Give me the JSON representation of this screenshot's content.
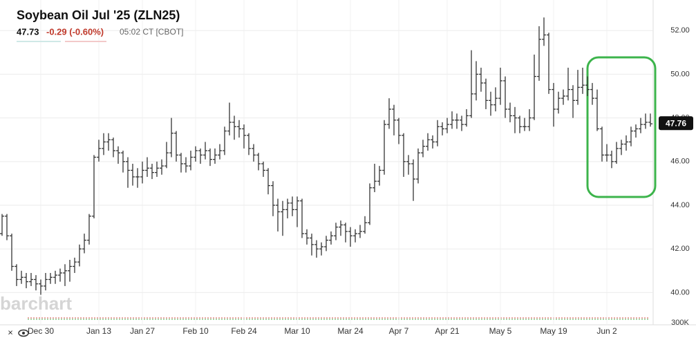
{
  "chart_data": {
    "type": "ohlc",
    "title": "Soybean Oil Jul '25 (ZLN25)",
    "last": 47.73,
    "change": "-0.29 (-0.60%)",
    "time_exchange": "05:02 CT [CBOT]",
    "watermark": "barchart",
    "volume_axis_label": "300K",
    "price_tag": 47.76,
    "color": "#333333",
    "ylim": [
      39.0,
      53.4
    ],
    "yticks": [
      {
        "value": 40,
        "label": "40.00"
      },
      {
        "value": 42,
        "label": "42.00"
      },
      {
        "value": 44,
        "label": "44.00"
      },
      {
        "value": 46,
        "label": "46.00"
      },
      {
        "value": 48,
        "label": "48.00"
      },
      {
        "value": 50,
        "label": "50.00"
      },
      {
        "value": 52,
        "label": "52.00"
      }
    ],
    "grid": true,
    "categories": [
      null,
      null,
      null,
      null,
      null,
      null,
      null,
      null,
      "Dec 30",
      null,
      null,
      null,
      null,
      null,
      null,
      null,
      null,
      null,
      null,
      null,
      "Jan 13",
      null,
      null,
      null,
      null,
      null,
      null,
      null,
      null,
      "Jan 27",
      null,
      null,
      null,
      null,
      null,
      null,
      null,
      null,
      null,
      null,
      "Feb 10",
      null,
      null,
      null,
      null,
      null,
      null,
      null,
      null,
      null,
      "Feb 24",
      null,
      null,
      null,
      null,
      null,
      null,
      null,
      null,
      null,
      null,
      "Mar 10",
      null,
      null,
      null,
      null,
      null,
      null,
      null,
      null,
      null,
      null,
      "Mar 24",
      null,
      null,
      null,
      null,
      null,
      null,
      null,
      null,
      null,
      "Apr 7",
      null,
      null,
      null,
      null,
      null,
      null,
      null,
      null,
      null,
      "Apr 21",
      null,
      null,
      null,
      null,
      null,
      null,
      null,
      null,
      null,
      null,
      "May 5",
      null,
      null,
      null,
      null,
      null,
      null,
      null,
      null,
      null,
      null,
      "May 19",
      null,
      null,
      null,
      null,
      null,
      null,
      null,
      null,
      null,
      null,
      "Jun 2",
      null,
      null,
      null,
      null,
      null,
      null,
      null,
      null,
      null
    ],
    "values": [
      [
        42.7,
        43.6,
        42.6,
        43.5
      ],
      [
        43.5,
        43.6,
        42.4,
        42.6
      ],
      [
        42.6,
        42.7,
        41.0,
        41.2
      ],
      [
        41.2,
        41.3,
        40.3,
        40.6
      ],
      [
        40.6,
        41.0,
        40.4,
        40.7
      ],
      [
        40.7,
        40.9,
        40.2,
        40.5
      ],
      [
        40.5,
        40.9,
        40.3,
        40.6
      ],
      [
        40.6,
        40.8,
        40.1,
        40.4
      ],
      [
        40.4,
        40.6,
        39.9,
        40.3
      ],
      [
        40.3,
        40.9,
        40.1,
        40.6
      ],
      [
        40.6,
        40.9,
        40.4,
        40.7
      ],
      [
        40.7,
        41.0,
        40.4,
        40.8
      ],
      [
        40.8,
        41.1,
        40.5,
        40.9
      ],
      [
        40.9,
        41.3,
        40.3,
        41.0
      ],
      [
        41.0,
        41.5,
        40.5,
        41.2
      ],
      [
        41.2,
        41.6,
        40.9,
        41.4
      ],
      [
        41.4,
        42.2,
        41.2,
        42.0
      ],
      [
        42.0,
        42.7,
        41.8,
        42.4
      ],
      [
        42.4,
        43.6,
        42.2,
        43.5
      ],
      [
        43.5,
        46.3,
        43.4,
        46.2
      ],
      [
        46.2,
        47.0,
        46.0,
        46.6
      ],
      [
        46.6,
        47.3,
        46.3,
        46.9
      ],
      [
        46.9,
        47.3,
        46.5,
        47.0
      ],
      [
        47.0,
        47.1,
        46.2,
        46.5
      ],
      [
        46.5,
        46.7,
        45.9,
        46.4
      ],
      [
        46.4,
        46.5,
        45.5,
        46.0
      ],
      [
        46.0,
        46.2,
        44.8,
        45.6
      ],
      [
        45.6,
        45.9,
        44.9,
        45.3
      ],
      [
        45.3,
        45.7,
        44.8,
        45.3
      ],
      [
        45.3,
        46.0,
        45.0,
        45.6
      ],
      [
        45.6,
        46.2,
        45.3,
        45.7
      ],
      [
        45.7,
        45.9,
        45.2,
        45.5
      ],
      [
        45.5,
        46.0,
        45.3,
        45.7
      ],
      [
        45.7,
        46.1,
        45.4,
        45.8
      ],
      [
        45.8,
        46.9,
        45.7,
        46.4
      ],
      [
        46.4,
        48.0,
        46.2,
        47.3
      ],
      [
        47.3,
        47.4,
        46.0,
        46.3
      ],
      [
        46.3,
        46.4,
        45.5,
        45.9
      ],
      [
        45.9,
        46.2,
        45.5,
        45.8
      ],
      [
        45.8,
        46.5,
        45.6,
        46.2
      ],
      [
        46.2,
        46.7,
        46.0,
        46.5
      ],
      [
        46.5,
        46.6,
        45.9,
        46.3
      ],
      [
        46.3,
        46.9,
        46.1,
        46.5
      ],
      [
        46.5,
        46.6,
        45.8,
        46.1
      ],
      [
        46.1,
        46.6,
        45.9,
        46.3
      ],
      [
        46.3,
        46.8,
        46.1,
        46.5
      ],
      [
        46.5,
        47.6,
        46.3,
        47.4
      ],
      [
        47.4,
        48.7,
        47.2,
        47.8
      ],
      [
        47.8,
        48.1,
        47.0,
        47.6
      ],
      [
        47.6,
        47.9,
        47.1,
        47.5
      ],
      [
        47.5,
        47.7,
        46.6,
        47.2
      ],
      [
        47.2,
        47.3,
        46.3,
        46.6
      ],
      [
        46.6,
        46.8,
        46.0,
        46.3
      ],
      [
        46.3,
        46.4,
        45.6,
        45.9
      ],
      [
        45.9,
        46.0,
        45.3,
        45.6
      ],
      [
        45.6,
        45.7,
        44.5,
        44.9
      ],
      [
        44.9,
        45.1,
        43.5,
        44.0
      ],
      [
        44.0,
        44.3,
        42.8,
        43.7
      ],
      [
        43.7,
        44.2,
        42.6,
        43.8
      ],
      [
        43.8,
        44.3,
        43.4,
        44.1
      ],
      [
        44.1,
        44.4,
        43.5,
        43.8
      ],
      [
        43.8,
        44.4,
        43.0,
        44.2
      ],
      [
        44.2,
        44.3,
        42.5,
        42.7
      ],
      [
        42.7,
        42.9,
        42.2,
        42.5
      ],
      [
        42.5,
        42.7,
        41.7,
        42.2
      ],
      [
        42.2,
        42.4,
        41.6,
        42.0
      ],
      [
        42.0,
        42.3,
        41.7,
        42.1
      ],
      [
        42.1,
        42.6,
        41.9,
        42.4
      ],
      [
        42.4,
        42.8,
        42.2,
        42.6
      ],
      [
        42.6,
        43.2,
        42.4,
        43.0
      ],
      [
        43.0,
        43.3,
        42.6,
        43.1
      ],
      [
        43.1,
        43.2,
        42.3,
        42.8
      ],
      [
        42.8,
        43.0,
        42.1,
        42.6
      ],
      [
        42.6,
        42.9,
        42.3,
        42.7
      ],
      [
        42.7,
        43.1,
        42.5,
        42.8
      ],
      [
        42.8,
        43.5,
        42.7,
        43.2
      ],
      [
        43.2,
        45.0,
        43.1,
        44.8
      ],
      [
        44.8,
        45.9,
        44.6,
        45.1
      ],
      [
        45.1,
        45.8,
        44.9,
        45.6
      ],
      [
        45.6,
        47.9,
        45.4,
        47.7
      ],
      [
        47.7,
        48.9,
        47.5,
        48.4
      ],
      [
        48.4,
        48.6,
        47.2,
        47.9
      ],
      [
        47.9,
        48.0,
        46.8,
        47.2
      ],
      [
        47.2,
        47.3,
        45.3,
        46.0
      ],
      [
        46.0,
        46.3,
        45.4,
        45.9
      ],
      [
        45.9,
        46.1,
        44.2,
        45.2
      ],
      [
        45.2,
        46.6,
        45.0,
        46.4
      ],
      [
        46.4,
        47.0,
        46.2,
        46.7
      ],
      [
        46.7,
        47.3,
        46.5,
        47.0
      ],
      [
        47.0,
        47.2,
        46.6,
        46.9
      ],
      [
        46.9,
        47.9,
        46.7,
        47.6
      ],
      [
        47.6,
        47.8,
        47.2,
        47.5
      ],
      [
        47.5,
        48.0,
        47.3,
        47.7
      ],
      [
        47.7,
        48.3,
        47.5,
        47.9
      ],
      [
        47.9,
        48.2,
        47.5,
        47.9
      ],
      [
        47.9,
        48.1,
        47.4,
        47.7
      ],
      [
        47.7,
        48.4,
        47.6,
        48.1
      ],
      [
        48.1,
        51.1,
        48.0,
        49.1
      ],
      [
        49.1,
        50.6,
        48.8,
        50.0
      ],
      [
        50.0,
        50.3,
        49.2,
        49.6
      ],
      [
        49.6,
        49.8,
        48.4,
        48.8
      ],
      [
        48.8,
        49.2,
        48.1,
        48.6
      ],
      [
        48.6,
        49.4,
        48.3,
        48.9
      ],
      [
        48.9,
        50.3,
        48.6,
        49.7
      ],
      [
        49.7,
        49.9,
        48.0,
        48.4
      ],
      [
        48.4,
        48.7,
        47.8,
        48.1
      ],
      [
        48.1,
        48.5,
        47.3,
        48.0
      ],
      [
        48.0,
        48.1,
        47.3,
        47.6
      ],
      [
        47.6,
        48.0,
        47.4,
        47.6
      ],
      [
        47.6,
        48.4,
        47.4,
        48.0
      ],
      [
        48.0,
        50.9,
        47.9,
        49.9
      ],
      [
        49.9,
        52.2,
        49.7,
        51.6
      ],
      [
        51.6,
        52.6,
        51.3,
        51.8
      ],
      [
        51.8,
        51.9,
        49.1,
        49.3
      ],
      [
        49.3,
        49.6,
        47.6,
        48.4
      ],
      [
        48.4,
        49.2,
        48.2,
        48.9
      ],
      [
        48.9,
        49.3,
        48.6,
        49.0
      ],
      [
        49.0,
        50.3,
        48.8,
        49.3
      ],
      [
        49.3,
        49.5,
        48.0,
        48.8
      ],
      [
        48.8,
        50.2,
        48.6,
        49.4
      ],
      [
        49.4,
        50.3,
        49.1,
        49.5
      ],
      [
        49.5,
        49.9,
        49.0,
        49.3
      ],
      [
        49.3,
        49.6,
        48.6,
        48.9
      ],
      [
        48.9,
        49.3,
        47.4,
        47.5
      ],
      [
        47.5,
        47.6,
        46.0,
        46.3
      ],
      [
        46.3,
        46.8,
        46.0,
        46.3
      ],
      [
        46.3,
        46.5,
        45.7,
        46.0
      ],
      [
        46.0,
        46.9,
        45.9,
        46.6
      ],
      [
        46.6,
        47.0,
        46.3,
        46.8
      ],
      [
        46.8,
        47.2,
        46.5,
        46.9
      ],
      [
        46.9,
        47.6,
        46.7,
        47.4
      ],
      [
        47.4,
        47.7,
        47.1,
        47.5
      ],
      [
        47.5,
        48.0,
        47.3,
        47.7
      ],
      [
        47.7,
        48.2,
        47.5,
        47.8
      ],
      [
        47.8,
        48.2,
        47.6,
        47.73
      ]
    ]
  }
}
